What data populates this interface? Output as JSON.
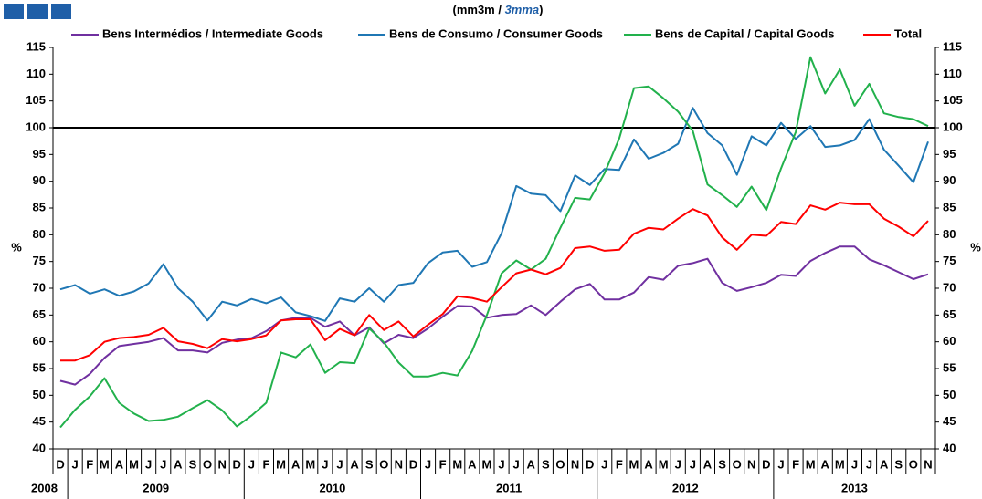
{
  "chart_data": {
    "type": "line",
    "title_parts": [
      "(mm3m / ",
      "3mma",
      ")"
    ],
    "y_label": "%",
    "y2_label": "%",
    "categories": [
      "D",
      "J",
      "F",
      "M",
      "A",
      "M",
      "J",
      "J",
      "A",
      "S",
      "O",
      "N",
      "D",
      "J",
      "F",
      "M",
      "A",
      "M",
      "J",
      "J",
      "A",
      "S",
      "O",
      "N",
      "D",
      "J",
      "F",
      "M",
      "A",
      "M",
      "J",
      "J",
      "A",
      "S",
      "O",
      "N",
      "D",
      "J",
      "F",
      "M",
      "A",
      "M",
      "J",
      "J",
      "A",
      "S",
      "O",
      "N",
      "D",
      "J",
      "F",
      "M",
      "A",
      "M",
      "J",
      "J",
      "A",
      "S",
      "O",
      "N"
    ],
    "year_labels": [
      "2008",
      "2009",
      "2010",
      "2011",
      "2012",
      "2013"
    ],
    "series": [
      {
        "name": "Bens Intermédios / Intermediate Goods",
        "color": "#7030a0",
        "values": [
          52.7,
          52,
          54,
          57,
          59.2,
          59.6,
          60,
          60.7,
          58.4,
          58.4,
          58,
          59.8,
          60.4,
          60.7,
          62,
          64,
          64.5,
          64.5,
          62.8,
          63.8,
          61.2,
          62.7,
          59.7,
          61.3,
          60.7,
          62.5,
          64.7,
          66.7,
          66.6,
          64.5,
          65,
          65.2,
          66.8,
          65,
          67.5,
          69.8,
          70.8,
          67.9,
          67.9,
          69.2,
          72.1,
          71.6,
          74.2,
          74.7,
          75.5,
          71,
          69.5,
          70.2,
          71,
          72.5,
          72.3,
          75.1,
          76.6,
          77.8,
          77.8,
          75.4,
          74.3,
          73,
          71.7,
          72.6
        ]
      },
      {
        "name": "Bens de Consumo / Consumer Goods",
        "color": "#1f77b4",
        "values": [
          69.8,
          70.6,
          69,
          69.8,
          68.6,
          69.4,
          70.9,
          74.5,
          70,
          67.5,
          64,
          67.5,
          66.8,
          68,
          67.2,
          68.3,
          65.5,
          64.8,
          63.9,
          68.1,
          67.5,
          70,
          67.5,
          70.6,
          71,
          74.7,
          76.7,
          77,
          74,
          74.9,
          80.3,
          89.1,
          87.7,
          87.4,
          84.4,
          91.1,
          89.3,
          92.3,
          92.1,
          97.8,
          94.2,
          95.3,
          97,
          103.7,
          99,
          96.7,
          91.2,
          98.4,
          96.7,
          100.9,
          97.9,
          100.3,
          96.4,
          96.7,
          97.7,
          101.6,
          95.9,
          92.9,
          89.8,
          97.4
        ]
      },
      {
        "name": "Bens de Capital / Capital Goods",
        "color": "#22b14c",
        "values": [
          44,
          47.3,
          49.8,
          53.2,
          48.6,
          46.6,
          45.2,
          45.4,
          46,
          47.6,
          49.1,
          47.2,
          44.2,
          46.2,
          48.6,
          58,
          57.1,
          59.5,
          54.2,
          56.2,
          56,
          62.5,
          59.9,
          56.1,
          53.5,
          53.5,
          54.2,
          53.7,
          58.3,
          65,
          72.8,
          75.2,
          73.5,
          75.5,
          81.3,
          86.9,
          86.6,
          91.5,
          98,
          107.4,
          107.7,
          105.5,
          103,
          99.4,
          89.4,
          87.4,
          85.2,
          89,
          84.6,
          92.4,
          99.2,
          113.2,
          106.4,
          110.9,
          104.1,
          108.2,
          102.7,
          102,
          101.6,
          100.3
        ]
      },
      {
        "name": "Total",
        "color": "#ff0000",
        "values": [
          56.5,
          56.5,
          57.5,
          60,
          60.7,
          60.9,
          61.3,
          62.6,
          60.1,
          59.6,
          58.8,
          60.5,
          60.1,
          60.5,
          61.2,
          64,
          64.2,
          64.2,
          60.3,
          62.4,
          61.2,
          65,
          62.2,
          63.8,
          61,
          63.2,
          65.2,
          68.5,
          68.2,
          67.5,
          70.2,
          72.8,
          73.5,
          72.6,
          73.8,
          77.5,
          77.8,
          77,
          77.2,
          80.2,
          81.3,
          81,
          83,
          84.8,
          83.6,
          79.5,
          77.2,
          80,
          79.8,
          82.4,
          82,
          85.5,
          84.7,
          86,
          85.7,
          85.7,
          83,
          81.5,
          79.7,
          82.6
        ]
      }
    ],
    "reference_line": 100,
    "ylim": [
      40,
      115
    ],
    "yticks": [
      40,
      45,
      50,
      55,
      60,
      65,
      70,
      75,
      80,
      85,
      90,
      95,
      100,
      105,
      110,
      115
    ],
    "y2lim": [
      40,
      115
    ],
    "y2ticks": [
      40,
      45,
      50,
      55,
      60,
      65,
      70,
      75,
      80,
      85,
      90,
      95,
      100,
      105,
      110,
      115
    ]
  }
}
